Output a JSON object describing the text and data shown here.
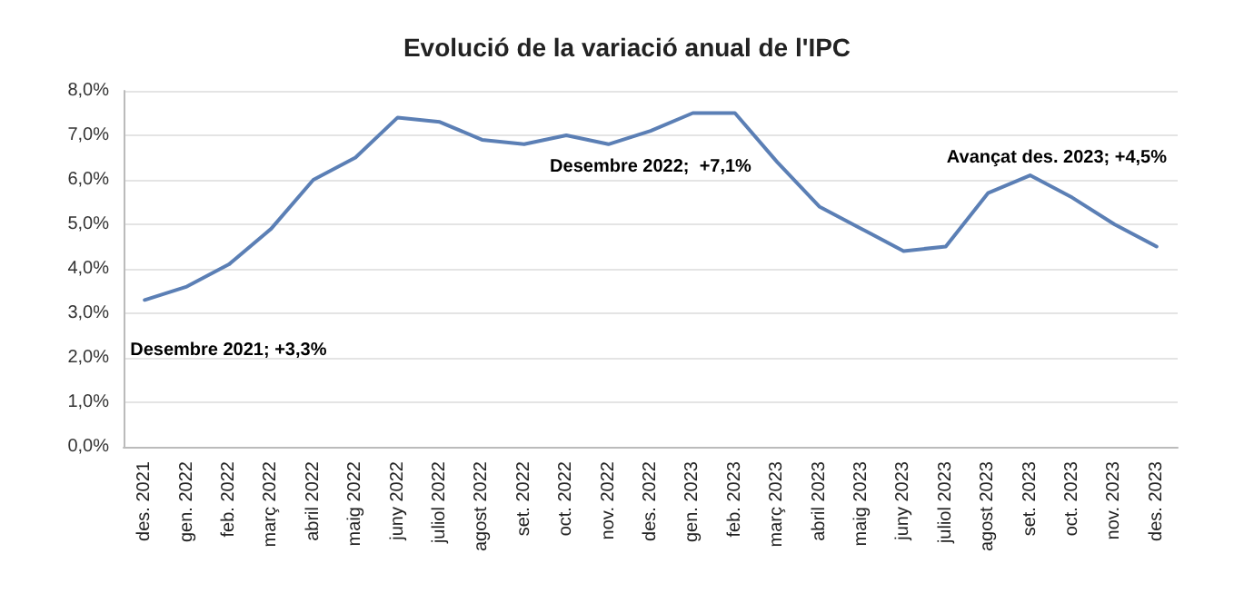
{
  "chart_data": {
    "type": "line",
    "title": "Evolució de la variació anual de l'IPC",
    "categories": [
      "des. 2021",
      "gen. 2022",
      "feb. 2022",
      "març 2022",
      "abril 2022",
      "maig 2022",
      "juny 2022",
      "juliol 2022",
      "agost 2022",
      "set. 2022",
      "oct. 2022",
      "nov. 2022",
      "des. 2022",
      "gen. 2023",
      "feb. 2023",
      "març 2023",
      "abril 2023",
      "maig 2023",
      "juny 2023",
      "juliol 2023",
      "agost 2023",
      "set. 2023",
      "oct. 2023",
      "nov. 2023",
      "des. 2023"
    ],
    "series": [
      {
        "color": "#5b7fb5",
        "values": [
          3.3,
          3.6,
          4.1,
          4.9,
          6.0,
          6.5,
          7.4,
          7.3,
          6.9,
          6.8,
          7.0,
          6.8,
          7.1,
          7.5,
          7.5,
          6.4,
          5.4,
          4.9,
          4.4,
          4.5,
          5.7,
          6.1,
          5.6,
          5.0,
          4.5
        ]
      }
    ],
    "ylim": [
      0,
      8
    ],
    "yticks": [
      {
        "value": 0,
        "label": "0,0%"
      },
      {
        "value": 1,
        "label": "1,0%"
      },
      {
        "value": 2,
        "label": "2,0%"
      },
      {
        "value": 3,
        "label": "3,0%"
      },
      {
        "value": 4,
        "label": "4,0%"
      },
      {
        "value": 5,
        "label": "5,0%"
      },
      {
        "value": 6,
        "label": "6,0%"
      },
      {
        "value": 7,
        "label": "7,0%"
      },
      {
        "value": 8,
        "label": "8,0%"
      }
    ],
    "grid": "y",
    "marker": "none",
    "line_style": "solid",
    "annotations": [
      {
        "text": "Desembre 2021; +3,3%",
        "x": "des. 2021",
        "y": 3.3
      },
      {
        "text": "Desembre 2022;  +7,1%",
        "x": "des. 2022",
        "y": 7.1
      },
      "Avançat des. 2023; +4,5%"
    ]
  }
}
